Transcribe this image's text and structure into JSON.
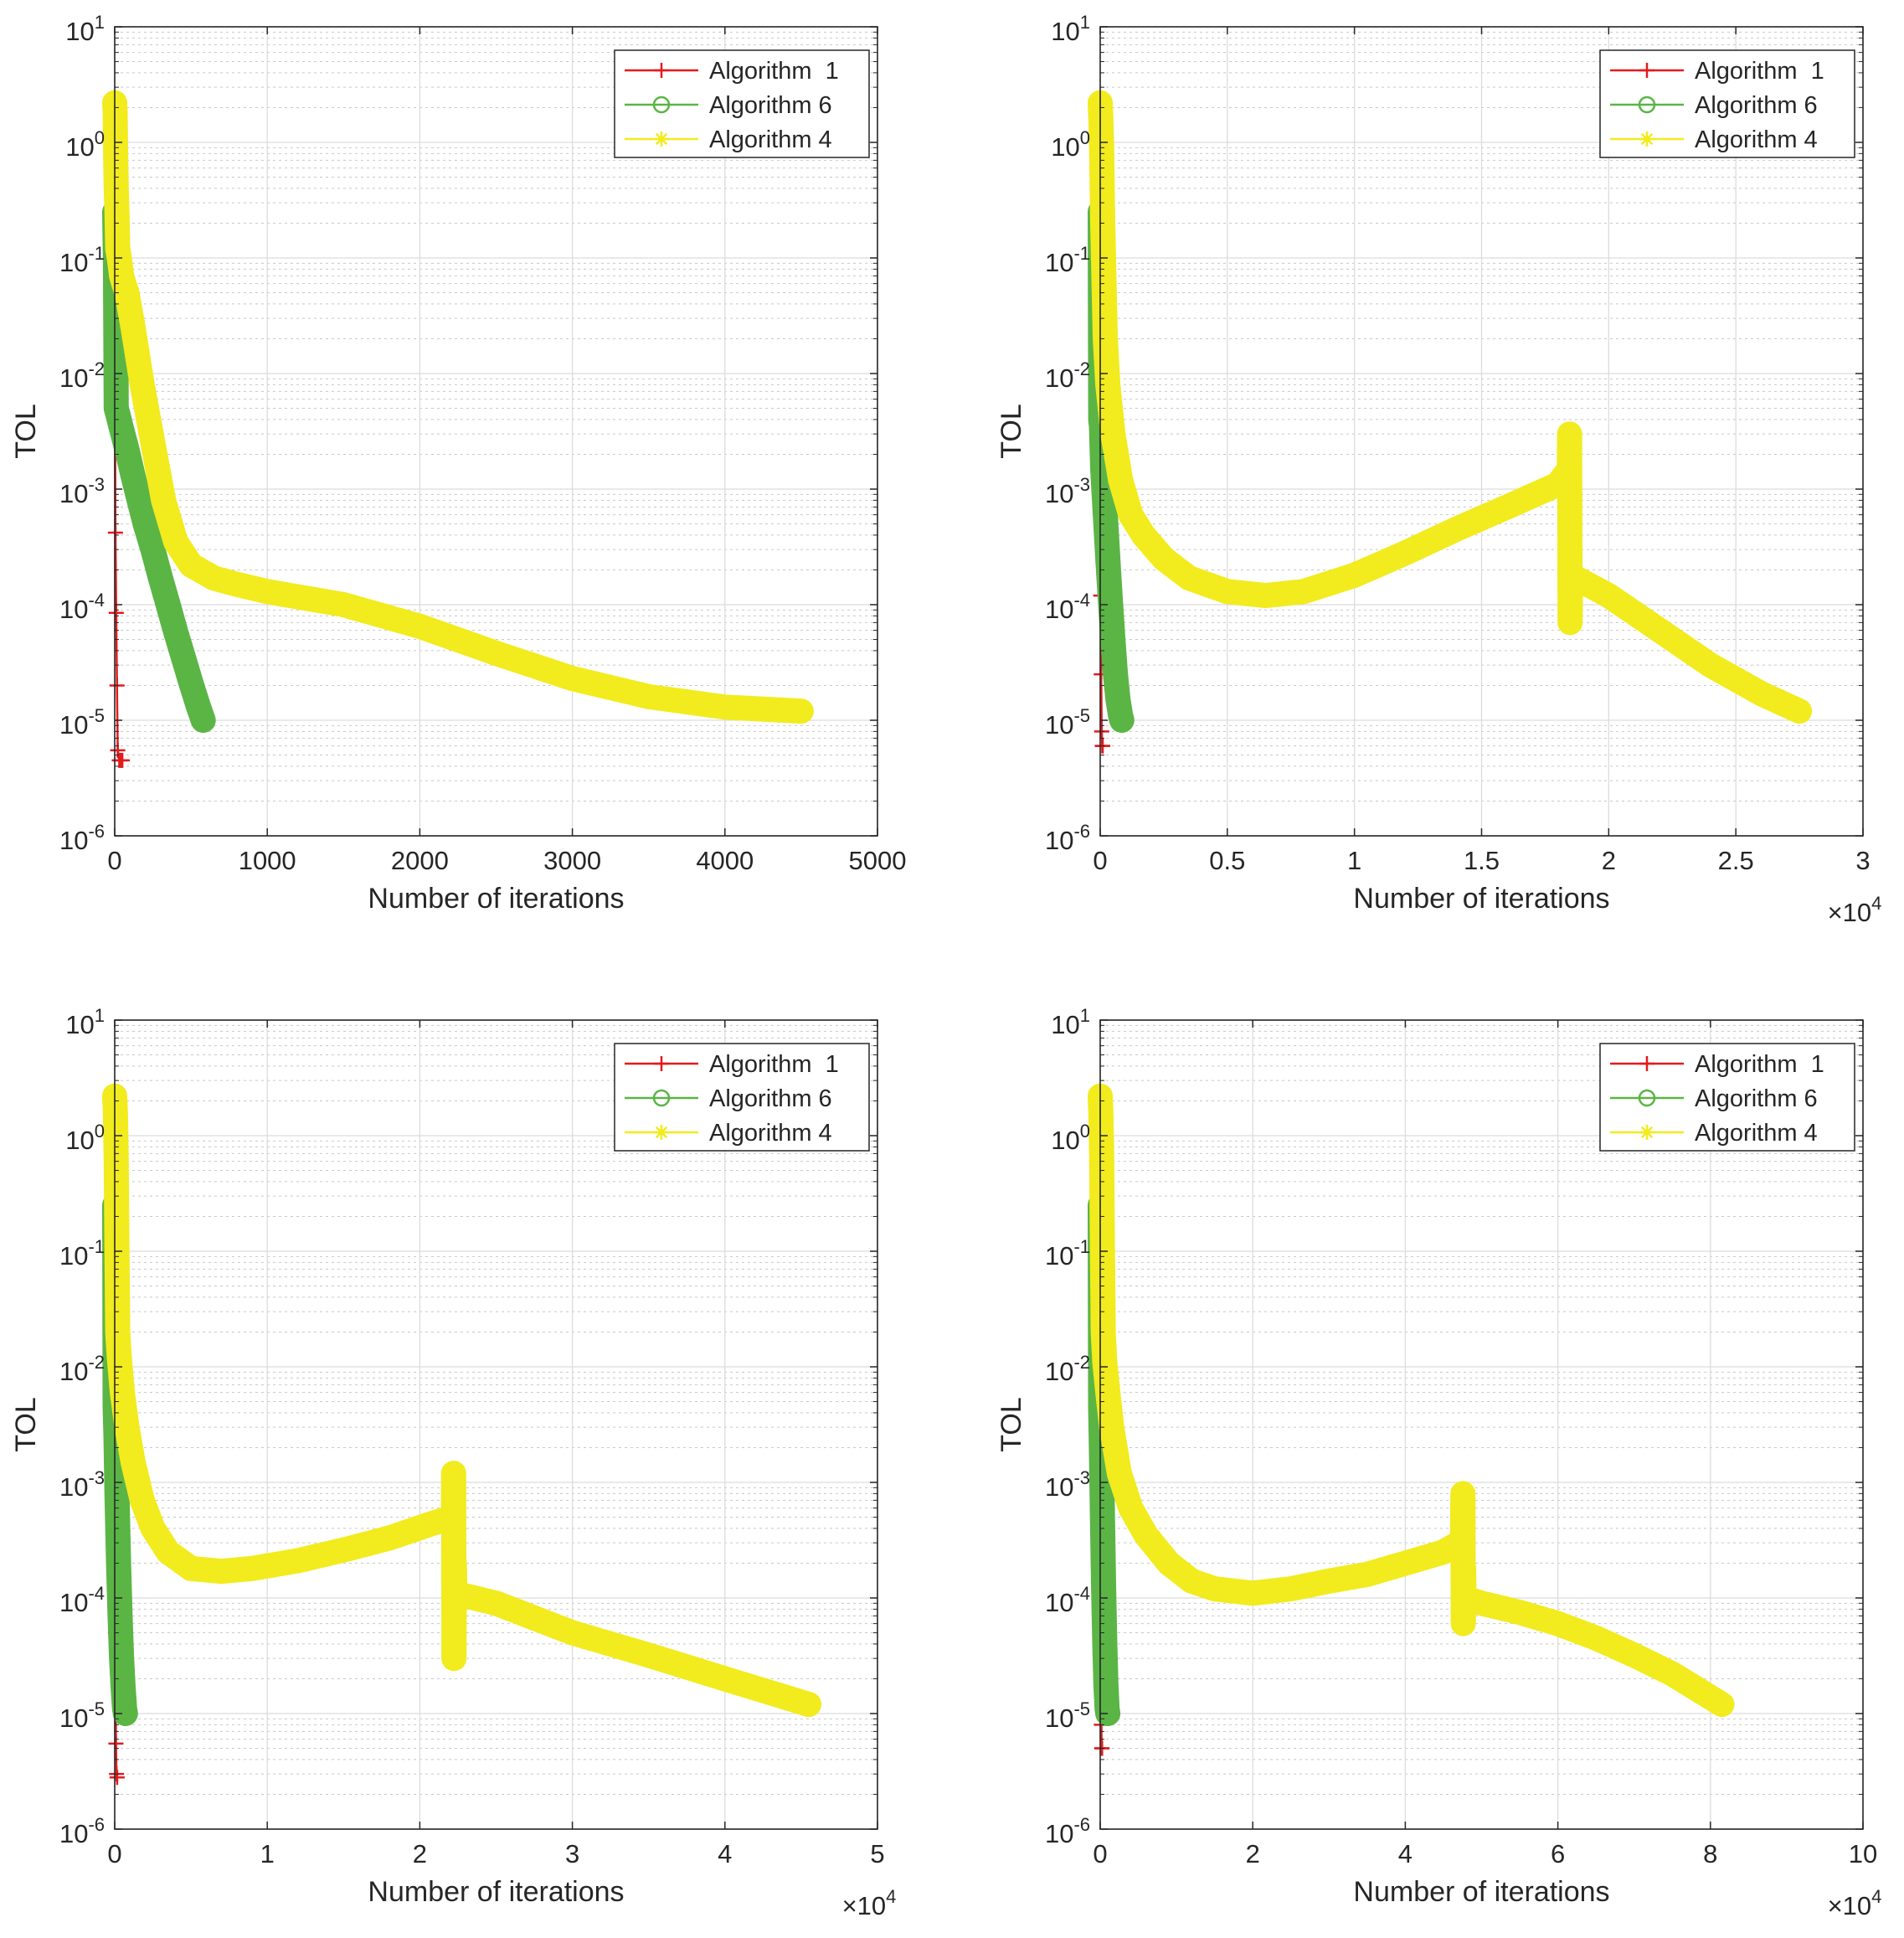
{
  "chart_data": [
    {
      "type": "line",
      "yscale": "log",
      "xlabel": "Number of iterations",
      "ylabel": "TOL",
      "x_multiplier": "",
      "xlim": [
        0,
        5000
      ],
      "ylim": [
        1e-06,
        10
      ],
      "xticks": [
        0,
        1000,
        2000,
        3000,
        4000,
        5000
      ],
      "xtick_labels": [
        "0",
        "1000",
        "2000",
        "3000",
        "4000",
        "5000"
      ],
      "ytick_exponents": [
        "1",
        "0",
        "-1",
        "-2",
        "-3",
        "-4",
        "-5",
        "-6"
      ],
      "ytick_base": "10",
      "grid": true,
      "legend_position": "top-right",
      "series": [
        {
          "name": "Algorithm  1",
          "color": "#e41a1c",
          "marker": "plus",
          "x": [
            0,
            2,
            5,
            10,
            15,
            20,
            30,
            40,
            50
          ],
          "y": [
            0.013,
            0.0045,
            0.00042,
            8.5e-05,
            2e-05,
            5.5e-06,
            4.5e-06,
            4.5e-06,
            4.5e-06
          ]
        },
        {
          "name": "Algorithm 6",
          "color": "#5ab545",
          "marker": "circle",
          "x": [
            0,
            5,
            10,
            20,
            40,
            80,
            120,
            160,
            200,
            250,
            300,
            350,
            400,
            450,
            500,
            550,
            580
          ],
          "y": [
            0.25,
            0.09,
            0.005,
            0.0045,
            0.0035,
            0.0022,
            0.0013,
            0.0008,
            0.0005,
            0.0003,
            0.00017,
            0.0001,
            5.8e-05,
            3.5e-05,
            2.1e-05,
            1.3e-05,
            1e-05
          ]
        },
        {
          "name": "Algorithm 4",
          "color": "#f2eb1e",
          "marker": "star",
          "x": [
            0,
            3,
            6,
            10,
            15,
            20,
            30,
            45,
            60,
            80,
            120,
            180,
            250,
            320,
            400,
            500,
            650,
            800,
            1000,
            1500,
            2000,
            2500,
            3000,
            3500,
            4000,
            4500
          ],
          "y": [
            2.2,
            1.8,
            0.8,
            0.4,
            0.25,
            0.12,
            0.1,
            0.07,
            0.06,
            0.05,
            0.025,
            0.008,
            0.0025,
            0.0008,
            0.00035,
            0.00022,
            0.00017,
            0.00015,
            0.00013,
            0.0001,
            6.5e-05,
            3.8e-05,
            2.3e-05,
            1.6e-05,
            1.3e-05,
            1.2e-05
          ]
        }
      ]
    },
    {
      "type": "line",
      "yscale": "log",
      "xlabel": "Number of iterations",
      "ylabel": "TOL",
      "x_multiplier": "4",
      "x_multiplier_base": "×10",
      "xlim": [
        0,
        30000
      ],
      "ylim": [
        1e-06,
        10
      ],
      "xticks": [
        0,
        5000,
        10000,
        15000,
        20000,
        25000,
        30000
      ],
      "xtick_labels": [
        "0",
        "0.5",
        "1",
        "1.5",
        "2",
        "2.5",
        "3"
      ],
      "ytick_exponents": [
        "1",
        "0",
        "-1",
        "-2",
        "-3",
        "-4",
        "-5",
        "-6"
      ],
      "ytick_base": "10",
      "grid": true,
      "legend_position": "top-right",
      "series": [
        {
          "name": "Algorithm  1",
          "color": "#e41a1c",
          "marker": "plus",
          "x": [
            0,
            10,
            20,
            40,
            60,
            80,
            100
          ],
          "y": [
            0.0045,
            0.0012,
            0.00012,
            2.5e-05,
            8e-06,
            6e-06,
            6e-06
          ]
        },
        {
          "name": "Algorithm 6",
          "color": "#5ab545",
          "marker": "circle",
          "x": [
            0,
            20,
            50,
            100,
            200,
            300,
            400,
            500,
            600,
            700,
            800,
            850
          ],
          "y": [
            0.25,
            0.004,
            0.0035,
            0.0015,
            0.0006,
            0.00025,
            0.00011,
            5e-05,
            2.5e-05,
            1.5e-05,
            1.1e-05,
            1e-05
          ]
        },
        {
          "name": "Algorithm 4",
          "color": "#f2eb1e",
          "marker": "star",
          "x": [
            0,
            30,
            60,
            100,
            150,
            200,
            300,
            500,
            800,
            1200,
            1700,
            2500,
            3500,
            5000,
            6500,
            8000,
            10000,
            12000,
            14000,
            16000,
            18000,
            18450,
            18460,
            18470,
            18480,
            18500,
            20000,
            22000,
            24000,
            26000,
            27500
          ],
          "y": [
            2.2,
            1.5,
            0.8,
            0.2,
            0.06,
            0.02,
            0.008,
            0.003,
            0.0012,
            0.0006,
            0.0004,
            0.00025,
            0.00017,
            0.00013,
            0.00012,
            0.00013,
            0.00018,
            0.00028,
            0.00045,
            0.0007,
            0.0011,
            0.0015,
            0.003,
            0.0005,
            7e-05,
            0.00018,
            0.00012,
            6e-05,
            3e-05,
            1.7e-05,
            1.2e-05
          ]
        }
      ]
    },
    {
      "type": "line",
      "yscale": "log",
      "xlabel": "Number of iterations",
      "ylabel": "TOL",
      "x_multiplier": "4",
      "x_multiplier_base": "×10",
      "xlim": [
        0,
        50000
      ],
      "ylim": [
        1e-06,
        10
      ],
      "xticks": [
        0,
        10000,
        20000,
        30000,
        40000,
        50000
      ],
      "xtick_labels": [
        "0",
        "1",
        "2",
        "3",
        "4",
        "5"
      ],
      "ytick_exponents": [
        "1",
        "0",
        "-1",
        "-2",
        "-3",
        "-4",
        "-5",
        "-6"
      ],
      "ytick_base": "10",
      "grid": true,
      "legend_position": "top-right",
      "series": [
        {
          "name": "Algorithm  1",
          "color": "#e41a1c",
          "marker": "plus",
          "x": [
            0,
            20,
            50,
            80,
            120,
            160
          ],
          "y": [
            0.006,
            0.0009,
            5e-05,
            5.5e-06,
            3e-06,
            2.8e-06
          ]
        },
        {
          "name": "Algorithm 6",
          "color": "#5ab545",
          "marker": "circle",
          "x": [
            0,
            30,
            80,
            150,
            250,
            350,
            450,
            550,
            650,
            700
          ],
          "y": [
            0.25,
            0.0045,
            0.0025,
            0.0008,
            0.0002,
            7e-05,
            3e-05,
            1.7e-05,
            1.1e-05,
            1e-05
          ]
        },
        {
          "name": "Algorithm 4",
          "color": "#f2eb1e",
          "marker": "star",
          "x": [
            0,
            50,
            100,
            150,
            200,
            300,
            500,
            800,
            1200,
            1800,
            2500,
            3500,
            5000,
            7000,
            9000,
            12000,
            15000,
            18000,
            21000,
            22200,
            22220,
            22240,
            22260,
            22300,
            25000,
            30000,
            35000,
            40000,
            45500
          ],
          "y": [
            2.2,
            1.5,
            0.6,
            0.1,
            0.02,
            0.012,
            0.006,
            0.003,
            0.0015,
            0.0007,
            0.0004,
            0.00025,
            0.00018,
            0.00017,
            0.00018,
            0.00021,
            0.00026,
            0.00033,
            0.00045,
            0.0005,
            0.0012,
            3e-05,
            0.0002,
            0.00011,
            9e-05,
            5e-05,
            3.2e-05,
            2e-05,
            1.2e-05
          ]
        }
      ]
    },
    {
      "type": "line",
      "yscale": "log",
      "xlabel": "Number of iterations",
      "ylabel": "TOL",
      "x_multiplier": "4",
      "x_multiplier_base": "×10",
      "xlim": [
        0,
        100000
      ],
      "ylim": [
        1e-06,
        10
      ],
      "xticks": [
        0,
        20000,
        40000,
        60000,
        80000,
        100000
      ],
      "xtick_labels": [
        "0",
        "2",
        "4",
        "6",
        "8",
        "10"
      ],
      "ytick_exponents": [
        "1",
        "0",
        "-1",
        "-2",
        "-3",
        "-4",
        "-5",
        "-6"
      ],
      "ytick_base": "10",
      "grid": true,
      "legend_position": "top-right",
      "series": [
        {
          "name": "Algorithm  1",
          "color": "#e41a1c",
          "marker": "plus",
          "x": [
            0,
            50,
            100,
            150,
            200,
            250
          ],
          "y": [
            0.005,
            0.0008,
            5e-05,
            8e-06,
            5e-06,
            5e-06
          ]
        },
        {
          "name": "Algorithm 6",
          "color": "#5ab545",
          "marker": "circle",
          "x": [
            0,
            50,
            150,
            300,
            450,
            600,
            750,
            900,
            1000
          ],
          "y": [
            0.25,
            0.0045,
            0.002,
            0.0005,
            0.00012,
            4e-05,
            1.8e-05,
            1.1e-05,
            1e-05
          ]
        },
        {
          "name": "Algorithm 4",
          "color": "#f2eb1e",
          "marker": "star",
          "x": [
            0,
            100,
            200,
            300,
            400,
            600,
            1000,
            1500,
            2500,
            4000,
            6000,
            9000,
            12000,
            15000,
            20000,
            25000,
            30000,
            35000,
            40000,
            45000,
            47500,
            47550,
            47600,
            47650,
            47700,
            50000,
            55000,
            60000,
            65000,
            70000,
            75000,
            81500
          ],
          "y": [
            2.2,
            1.5,
            0.6,
            0.1,
            0.02,
            0.011,
            0.006,
            0.003,
            0.0012,
            0.0006,
            0.00035,
            0.0002,
            0.00014,
            0.00012,
            0.00011,
            0.00012,
            0.00014,
            0.00016,
            0.0002,
            0.00025,
            0.00031,
            0.0008,
            6e-05,
            0.00018,
            0.0001,
            9e-05,
            7.5e-05,
            6e-05,
            4.5e-05,
            3.2e-05,
            2.2e-05,
            1.2e-05
          ]
        }
      ]
    }
  ]
}
